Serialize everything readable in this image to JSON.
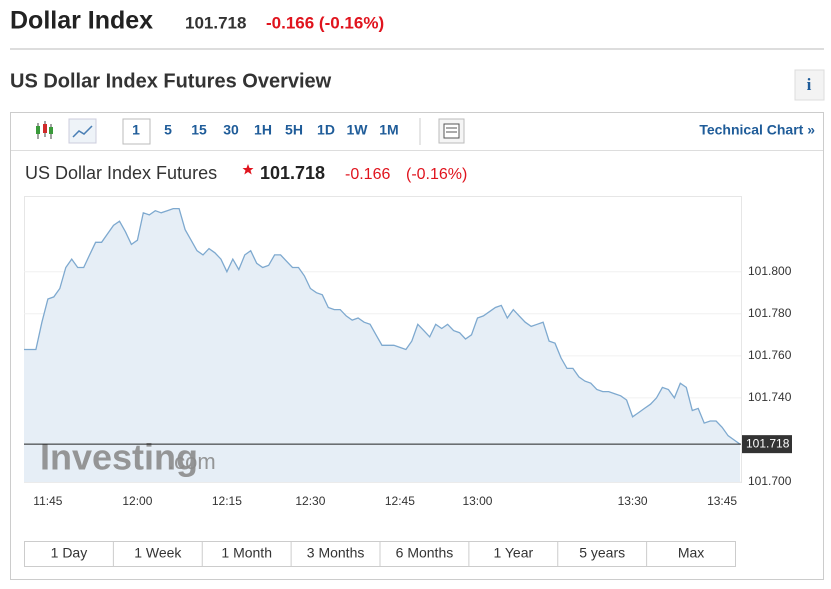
{
  "header": {
    "title": "Dollar Index",
    "price": "101.718",
    "change": "-0.166 (-0.16%)"
  },
  "overview": {
    "title": "US Dollar Index Futures Overview",
    "info": "i"
  },
  "toolbar": {
    "intervals": [
      "1",
      "5",
      "15",
      "30",
      "1H",
      "5H",
      "1D",
      "1W",
      "1M"
    ],
    "technical": "Technical Chart »"
  },
  "quote": {
    "price": "101.718",
    "change": "-0.166",
    "percent": "(-0.16%)"
  },
  "watermark": {
    "brand": "Investing",
    "domain": ".com"
  },
  "ranges": [
    "1 Day",
    "1 Week",
    "1 Month",
    "3 Months",
    "6 Months",
    "1 Year",
    "5 years",
    "Max"
  ],
  "chart_data": {
    "type": "area",
    "title": "US Dollar Index Futures",
    "color": "#7ea9cf",
    "fill": "#e6eef6",
    "categories": [
      null,
      null,
      null,
      null,
      "11:45",
      null,
      null,
      null,
      null,
      null,
      null,
      null,
      null,
      null,
      null,
      null,
      null,
      null,
      null,
      "12:00",
      null,
      null,
      null,
      null,
      null,
      null,
      null,
      null,
      null,
      null,
      null,
      null,
      null,
      null,
      "12:15",
      null,
      null,
      null,
      null,
      null,
      null,
      null,
      null,
      null,
      null,
      null,
      null,
      null,
      "12:30",
      null,
      null,
      null,
      null,
      null,
      null,
      null,
      null,
      null,
      null,
      null,
      null,
      null,
      null,
      "12:45",
      null,
      null,
      null,
      null,
      null,
      null,
      null,
      null,
      null,
      null,
      null,
      null,
      "13:00",
      null,
      null,
      null,
      null,
      null,
      null,
      null,
      null,
      null,
      null,
      null,
      null,
      null,
      null,
      null,
      null,
      null,
      null,
      null,
      null,
      null,
      null,
      null,
      null,
      null,
      "13:30",
      null,
      null,
      null,
      null,
      null,
      null,
      null,
      null,
      null,
      null,
      null,
      null,
      null,
      null,
      "13:45",
      null,
      null,
      null
    ],
    "values": [
      101.763,
      101.763,
      101.763,
      101.776,
      101.787,
      101.788,
      101.792,
      101.802,
      101.806,
      101.802,
      101.802,
      101.808,
      101.814,
      101.814,
      101.818,
      101.822,
      101.824,
      101.819,
      101.813,
      101.815,
      101.828,
      101.827,
      101.829,
      101.828,
      101.829,
      101.83,
      101.83,
      101.82,
      101.815,
      101.81,
      101.808,
      101.811,
      101.809,
      101.806,
      101.8,
      101.806,
      101.801,
      101.808,
      101.81,
      101.804,
      101.802,
      101.803,
      101.808,
      101.808,
      101.805,
      101.802,
      101.802,
      101.798,
      101.792,
      101.79,
      101.789,
      101.783,
      101.782,
      101.782,
      101.779,
      101.777,
      101.778,
      101.776,
      101.775,
      101.77,
      101.765,
      101.765,
      101.765,
      101.764,
      101.763,
      101.767,
      101.775,
      101.772,
      101.769,
      101.775,
      101.773,
      101.775,
      101.772,
      101.771,
      101.768,
      101.77,
      101.778,
      101.779,
      101.781,
      101.783,
      101.784,
      101.778,
      101.782,
      101.779,
      101.776,
      101.774,
      101.775,
      101.776,
      101.767,
      101.766,
      101.759,
      101.754,
      101.754,
      101.75,
      101.748,
      101.747,
      101.744,
      101.743,
      101.743,
      101.742,
      101.741,
      101.739,
      101.731,
      101.733,
      101.735,
      101.737,
      101.74,
      101.745,
      101.744,
      101.74,
      101.747,
      101.745,
      101.734,
      101.735,
      101.728,
      101.729,
      101.729,
      101.726,
      101.722,
      101.72,
      101.718
    ],
    "ylim": [
      101.7,
      101.836
    ],
    "yticks": [
      {
        "value": 101.7,
        "label": "101.700"
      },
      {
        "value": 101.74,
        "label": "101.740"
      },
      {
        "value": 101.76,
        "label": "101.760"
      },
      {
        "value": 101.78,
        "label": "101.780"
      },
      {
        "value": 101.8,
        "label": "101.800"
      }
    ],
    "price_line": 101.718
  }
}
